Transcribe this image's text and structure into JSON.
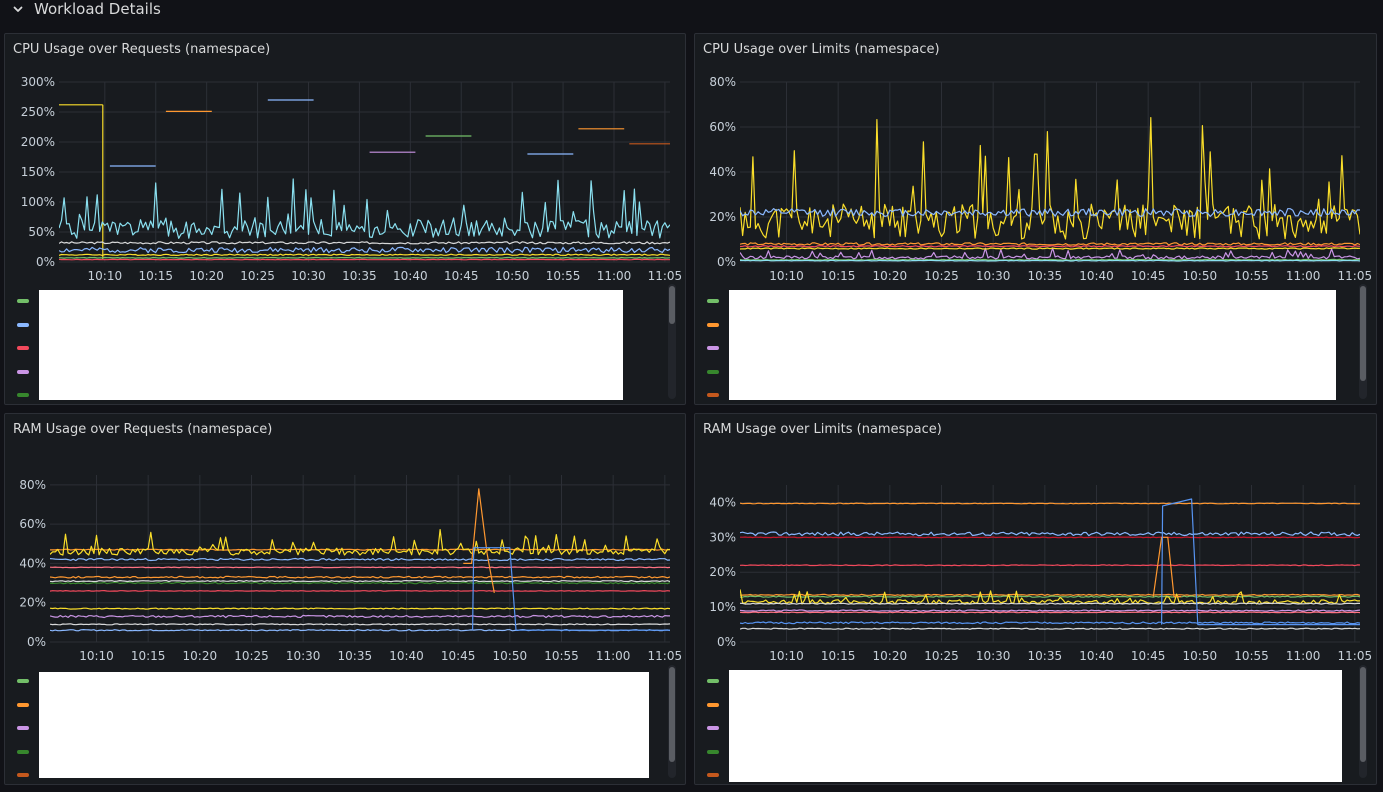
{
  "row": {
    "title": "Workload Details",
    "icon": "chevron-down-icon"
  },
  "colors": {
    "green": "#73bf69",
    "blue": "#8ab8ff",
    "red": "#f2495c",
    "purple": "#ca95e5",
    "dkgreen": "#37872d",
    "orange": "#ff9830",
    "yellow": "#fade2a",
    "cyan": "#8ae0f0",
    "lightgrey": "#d8d9da",
    "dkorange": "#c4581d",
    "pink": "#ff7383",
    "teal": "#5794f2",
    "dkred": "#c4162a"
  },
  "panels": [
    {
      "id": "cpu-requests",
      "title": "CPU Usage over Requests (namespace)",
      "legend_colors": [
        "green",
        "blue",
        "red",
        "purple",
        "dkgreen"
      ],
      "chart_data": {
        "type": "line",
        "x_ticks": [
          "10:10",
          "10:15",
          "10:20",
          "10:25",
          "10:30",
          "10:35",
          "10:40",
          "10:45",
          "10:50",
          "10:55",
          "11:00",
          "11:05"
        ],
        "y_ticks": [
          "0%",
          "50%",
          "100%",
          "150%",
          "200%",
          "250%",
          "300%"
        ],
        "ylim": [
          0,
          300
        ],
        "xlim_minutes": [
          5.5,
          65.5
        ],
        "grid": true,
        "series": [
          {
            "color": "yellow",
            "kind": "segment",
            "x": [
              5.5,
              9.8
            ],
            "y": [
              262,
              262
            ]
          },
          {
            "color": "yellow",
            "kind": "drop",
            "x": [
              9.8,
              9.8
            ],
            "y": [
              262,
              5
            ]
          },
          {
            "color": "blue",
            "kind": "segment",
            "x": [
              10.5,
              15
            ],
            "y": [
              160,
              160
            ]
          },
          {
            "color": "orange",
            "kind": "segment",
            "x": [
              16,
              20.5
            ],
            "y": [
              251,
              251
            ]
          },
          {
            "color": "blue",
            "kind": "segment",
            "x": [
              26,
              30.5
            ],
            "y": [
              270,
              270
            ]
          },
          {
            "color": "purple",
            "kind": "segment",
            "x": [
              36,
              40.5
            ],
            "y": [
              183,
              183
            ]
          },
          {
            "color": "green",
            "kind": "segment",
            "x": [
              41.5,
              46
            ],
            "y": [
              210,
              210
            ]
          },
          {
            "color": "blue",
            "kind": "segment",
            "x": [
              51.5,
              56
            ],
            "y": [
              180,
              180
            ]
          },
          {
            "color": "orange",
            "kind": "segment",
            "x": [
              56.5,
              61
            ],
            "y": [
              222,
              222
            ]
          },
          {
            "color": "dkorange",
            "kind": "segment",
            "x": [
              61.5,
              65.5
            ],
            "y": [
              197,
              197
            ]
          },
          {
            "color": "cyan",
            "kind": "noise",
            "base": 55,
            "amp": 90,
            "spikes": true,
            "seed": 1
          },
          {
            "color": "blue",
            "kind": "noise",
            "base": 20,
            "amp": 25,
            "spikes": false,
            "seed": 2
          },
          {
            "color": "lightgrey",
            "kind": "noise",
            "base": 32,
            "amp": 10,
            "spikes": false,
            "seed": 3
          },
          {
            "color": "yellow",
            "kind": "noise",
            "base": 12,
            "amp": 6,
            "spikes": false,
            "seed": 4
          },
          {
            "color": "red",
            "kind": "noise",
            "base": 4,
            "amp": 2,
            "spikes": false,
            "seed": 5
          },
          {
            "color": "green",
            "kind": "noise",
            "base": 7,
            "amp": 3,
            "spikes": false,
            "seed": 6
          }
        ]
      }
    },
    {
      "id": "cpu-limits",
      "title": "CPU Usage over Limits (namespace)",
      "legend_colors": [
        "green",
        "orange",
        "purple",
        "dkgreen",
        "dkorange"
      ],
      "chart_data": {
        "type": "line",
        "x_ticks": [
          "10:10",
          "10:15",
          "10:20",
          "10:25",
          "10:30",
          "10:35",
          "10:40",
          "10:45",
          "10:50",
          "10:55",
          "11:00",
          "11:05"
        ],
        "y_ticks": [
          "0%",
          "20%",
          "40%",
          "60%",
          "80%"
        ],
        "ylim": [
          0,
          80
        ],
        "xlim_minutes": [
          5.5,
          65.5
        ],
        "grid": true,
        "series": [
          {
            "color": "yellow",
            "kind": "noise",
            "base": 18,
            "amp": 45,
            "spikes": true,
            "seed": 11
          },
          {
            "color": "blue",
            "kind": "noise",
            "base": 22,
            "amp": 10,
            "spikes": false,
            "seed": 12
          },
          {
            "color": "purple",
            "kind": "noise",
            "base": 2,
            "amp": 4,
            "spikes": true,
            "seed": 13
          },
          {
            "color": "orange",
            "kind": "noise",
            "base": 8,
            "amp": 3,
            "spikes": false,
            "seed": 14
          },
          {
            "color": "red",
            "kind": "noise",
            "base": 7,
            "amp": 1.5,
            "spikes": false,
            "seed": 15
          },
          {
            "color": "yellow",
            "kind": "noise",
            "base": 6,
            "amp": 1.5,
            "spikes": false,
            "seed": 16
          },
          {
            "color": "green",
            "kind": "noise",
            "base": 1,
            "amp": 1,
            "spikes": false,
            "seed": 17
          },
          {
            "color": "cyan",
            "kind": "noise",
            "base": 0.6,
            "amp": 0.8,
            "spikes": false,
            "seed": 18
          }
        ]
      }
    },
    {
      "id": "ram-requests",
      "title": "RAM Usage over Requests (namespace)",
      "legend_colors": [
        "green",
        "orange",
        "purple",
        "dkgreen",
        "dkorange"
      ],
      "chart_data": {
        "type": "line",
        "x_ticks": [
          "10:10",
          "10:15",
          "10:20",
          "10:25",
          "10:30",
          "10:35",
          "10:40",
          "10:45",
          "10:50",
          "10:55",
          "11:00",
          "11:05"
        ],
        "y_ticks": [
          "0%",
          "20%",
          "40%",
          "60%",
          "80%"
        ],
        "ylim": [
          0,
          85
        ],
        "xlim_minutes": [
          5.5,
          65.5
        ],
        "grid": true,
        "series": [
          {
            "color": "orange",
            "kind": "flat",
            "base": 47,
            "amp": 0.5,
            "seed": 21
          },
          {
            "color": "yellow",
            "kind": "noise",
            "base": 46,
            "amp": 10,
            "spikes": true,
            "seed": 22
          },
          {
            "color": "blue",
            "kind": "noise",
            "base": 42,
            "amp": 3,
            "spikes": false,
            "seed": 23
          },
          {
            "color": "pink",
            "kind": "flat",
            "base": 38,
            "amp": 0.3,
            "seed": 24
          },
          {
            "color": "orange",
            "kind": "flat",
            "base": 33,
            "amp": 0.8,
            "seed": 25
          },
          {
            "color": "dkgreen",
            "kind": "noise",
            "base": 30,
            "amp": 2,
            "spikes": false,
            "seed": 26
          },
          {
            "color": "lightgrey",
            "kind": "flat",
            "base": 31,
            "amp": 0.5,
            "seed": 27
          },
          {
            "color": "red",
            "kind": "flat",
            "base": 26,
            "amp": 0.3,
            "seed": 28
          },
          {
            "color": "yellow",
            "kind": "flat",
            "base": 17,
            "amp": 0.5,
            "seed": 29
          },
          {
            "color": "purple",
            "kind": "noise",
            "base": 13,
            "amp": 3,
            "spikes": false,
            "seed": 30
          },
          {
            "color": "lightgrey",
            "kind": "flat",
            "base": 9,
            "amp": 0.5,
            "seed": 31
          },
          {
            "color": "blue",
            "kind": "flat",
            "base": 6,
            "amp": 0.6,
            "seed": 32
          },
          {
            "color": "orange",
            "kind": "spike",
            "x": [
              45.5,
              46.3,
              47,
              47.8,
              48.5
            ],
            "y": [
              40,
              40,
              78,
              45,
              25
            ]
          },
          {
            "color": "teal",
            "kind": "step",
            "x": [
              46.4,
              46.5,
              50,
              50.6,
              65.5
            ],
            "y": [
              6,
              48,
              48,
              6,
              6
            ]
          }
        ]
      }
    },
    {
      "id": "ram-limits",
      "title": "RAM Usage over Limits (namespace)",
      "legend_colors": [
        "green",
        "orange",
        "purple",
        "dkgreen",
        "dkorange"
      ],
      "chart_data": {
        "type": "line",
        "x_ticks": [
          "10:10",
          "10:15",
          "10:20",
          "10:25",
          "10:30",
          "10:35",
          "10:40",
          "10:45",
          "10:50",
          "10:55",
          "11:00",
          "11:05"
        ],
        "y_ticks": [
          "0%",
          "10%",
          "20%",
          "30%",
          "40%"
        ],
        "ylim": [
          0,
          45
        ],
        "xlim_minutes": [
          5.5,
          65.5
        ],
        "grid": true,
        "series": [
          {
            "color": "orange",
            "kind": "flat",
            "base": 39.7,
            "amp": 0.2,
            "seed": 41
          },
          {
            "color": "blue",
            "kind": "noise",
            "base": 31,
            "amp": 3,
            "spikes": false,
            "seed": 42
          },
          {
            "color": "dkred",
            "kind": "flat",
            "base": 30,
            "amp": 0.2,
            "seed": 43
          },
          {
            "color": "red",
            "kind": "flat",
            "base": 22,
            "amp": 0.2,
            "seed": 44
          },
          {
            "color": "orange",
            "kind": "flat",
            "base": 13.5,
            "amp": 0.3,
            "seed": 45
          },
          {
            "color": "green",
            "kind": "noise",
            "base": 13,
            "amp": 1,
            "spikes": false,
            "seed": 46
          },
          {
            "color": "yellow",
            "kind": "noise",
            "base": 11.5,
            "amp": 3.5,
            "spikes": true,
            "seed": 47
          },
          {
            "color": "lightgrey",
            "kind": "flat",
            "base": 11,
            "amp": 0.3,
            "seed": 48
          },
          {
            "color": "purple",
            "kind": "noise",
            "base": 9,
            "amp": 1,
            "spikes": false,
            "seed": 49
          },
          {
            "color": "pink",
            "kind": "flat",
            "base": 8.5,
            "amp": 0.2,
            "seed": 50
          },
          {
            "color": "teal",
            "kind": "flat",
            "base": 5.5,
            "amp": 0.5,
            "seed": 51
          },
          {
            "color": "lightgrey",
            "kind": "flat",
            "base": 3.8,
            "amp": 0.3,
            "seed": 52
          },
          {
            "color": "orange",
            "kind": "spike",
            "x": [
              45.5,
              46.3,
              46.9,
              47.5,
              48.2
            ],
            "y": [
              13,
              30,
              30,
              13,
              13
            ]
          },
          {
            "color": "teal",
            "kind": "step",
            "x": [
              46.3,
              46.4,
              49.2,
              49.8,
              65.5
            ],
            "y": [
              5,
              39,
              41,
              5,
              5
            ]
          }
        ]
      }
    }
  ]
}
